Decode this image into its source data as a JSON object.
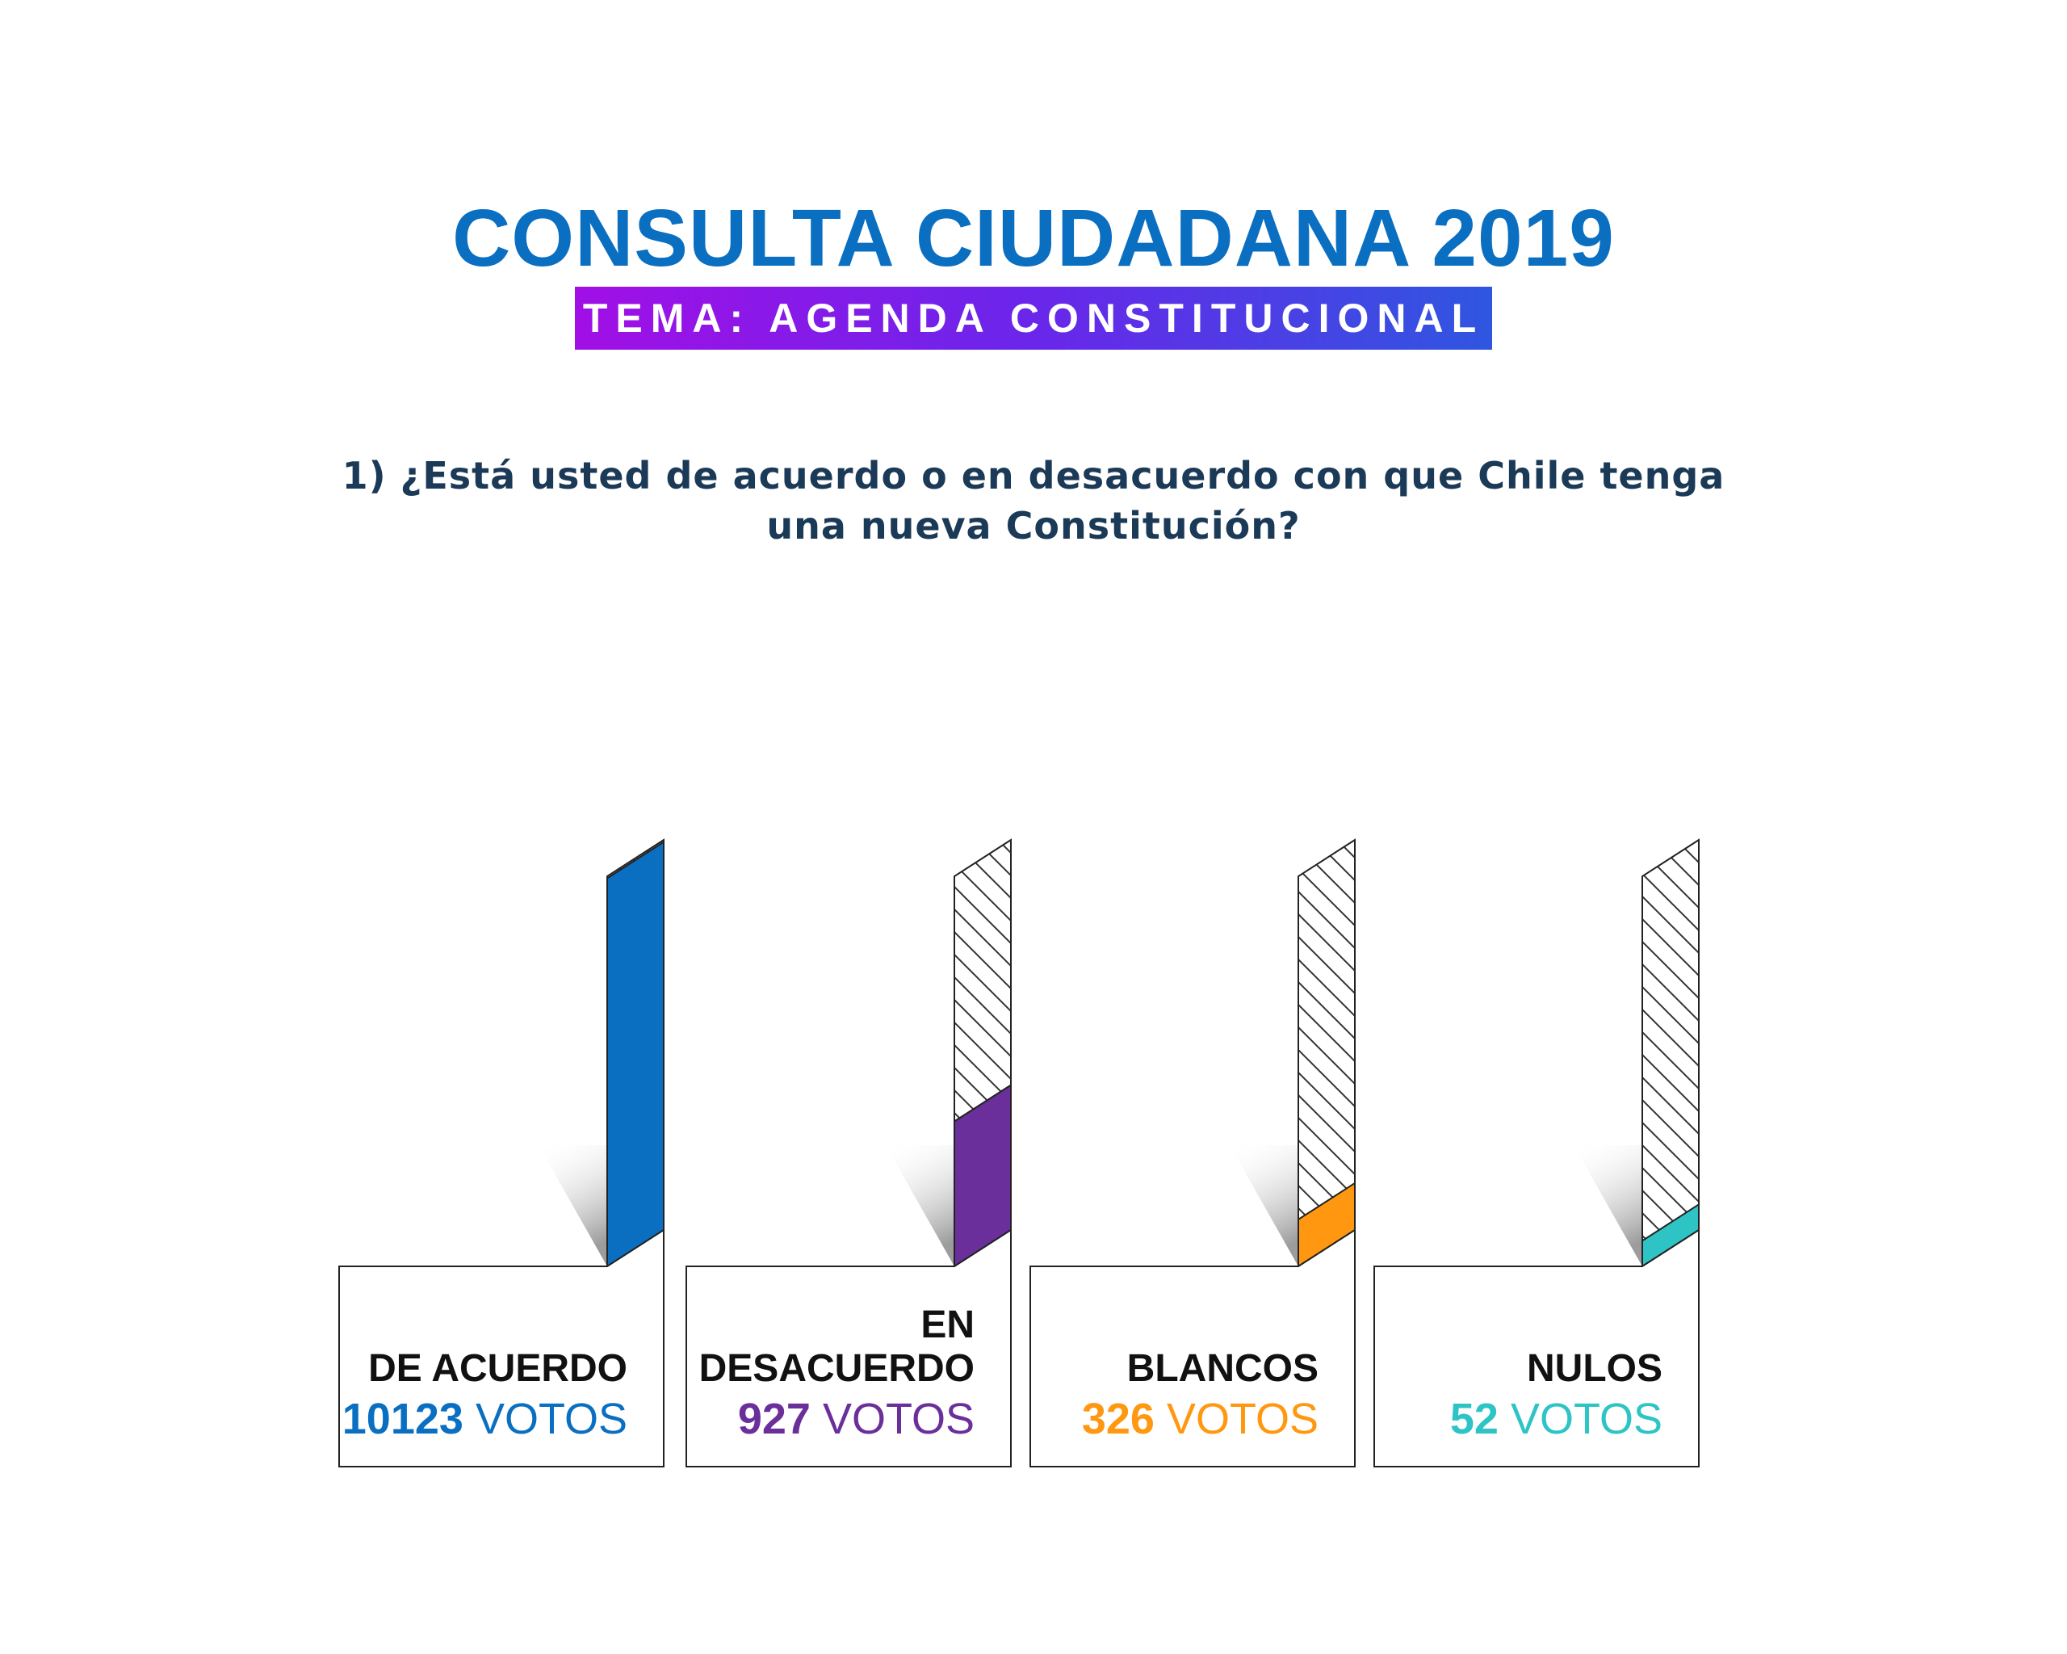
{
  "title": "CONSULTA CIUDADANA 2019",
  "subtitle": "TEMA: AGENDA CONSTITUCIONAL",
  "question": "1) ¿Está usted de acuerdo o en desacuerdo con que Chile tenga una nueva Constitución?",
  "colors": {
    "title": "#0b6fc1",
    "subtitle_gradient": [
      "#a10fe6",
      "#2f56e0"
    ],
    "question": "#1b3a57"
  },
  "chart_data": {
    "type": "bar",
    "title": "1) ¿Está usted de acuerdo o en desacuerdo con que Chile tenga una nueva Constitución?",
    "unit": "VOTOS",
    "categories": [
      {
        "label_lines": [
          "DE ACUERDO"
        ],
        "value": 10123,
        "unit": "VOTOS",
        "color": "#0b6fc1"
      },
      {
        "label_lines": [
          "EN",
          "DESACUERDO"
        ],
        "value": 927,
        "unit": "VOTOS",
        "color": "#6a2f9a"
      },
      {
        "label_lines": [
          "BLANCOS"
        ],
        "value": 326,
        "unit": "VOTOS",
        "color": "#ff9810"
      },
      {
        "label_lines": [
          "NULOS"
        ],
        "value": 52,
        "unit": "VOTOS",
        "color": "#2ec4c6"
      }
    ],
    "fill_fraction": [
      0.91,
      0.34,
      0.11,
      0.06
    ],
    "empty_pattern": "diagonal-hatch"
  }
}
